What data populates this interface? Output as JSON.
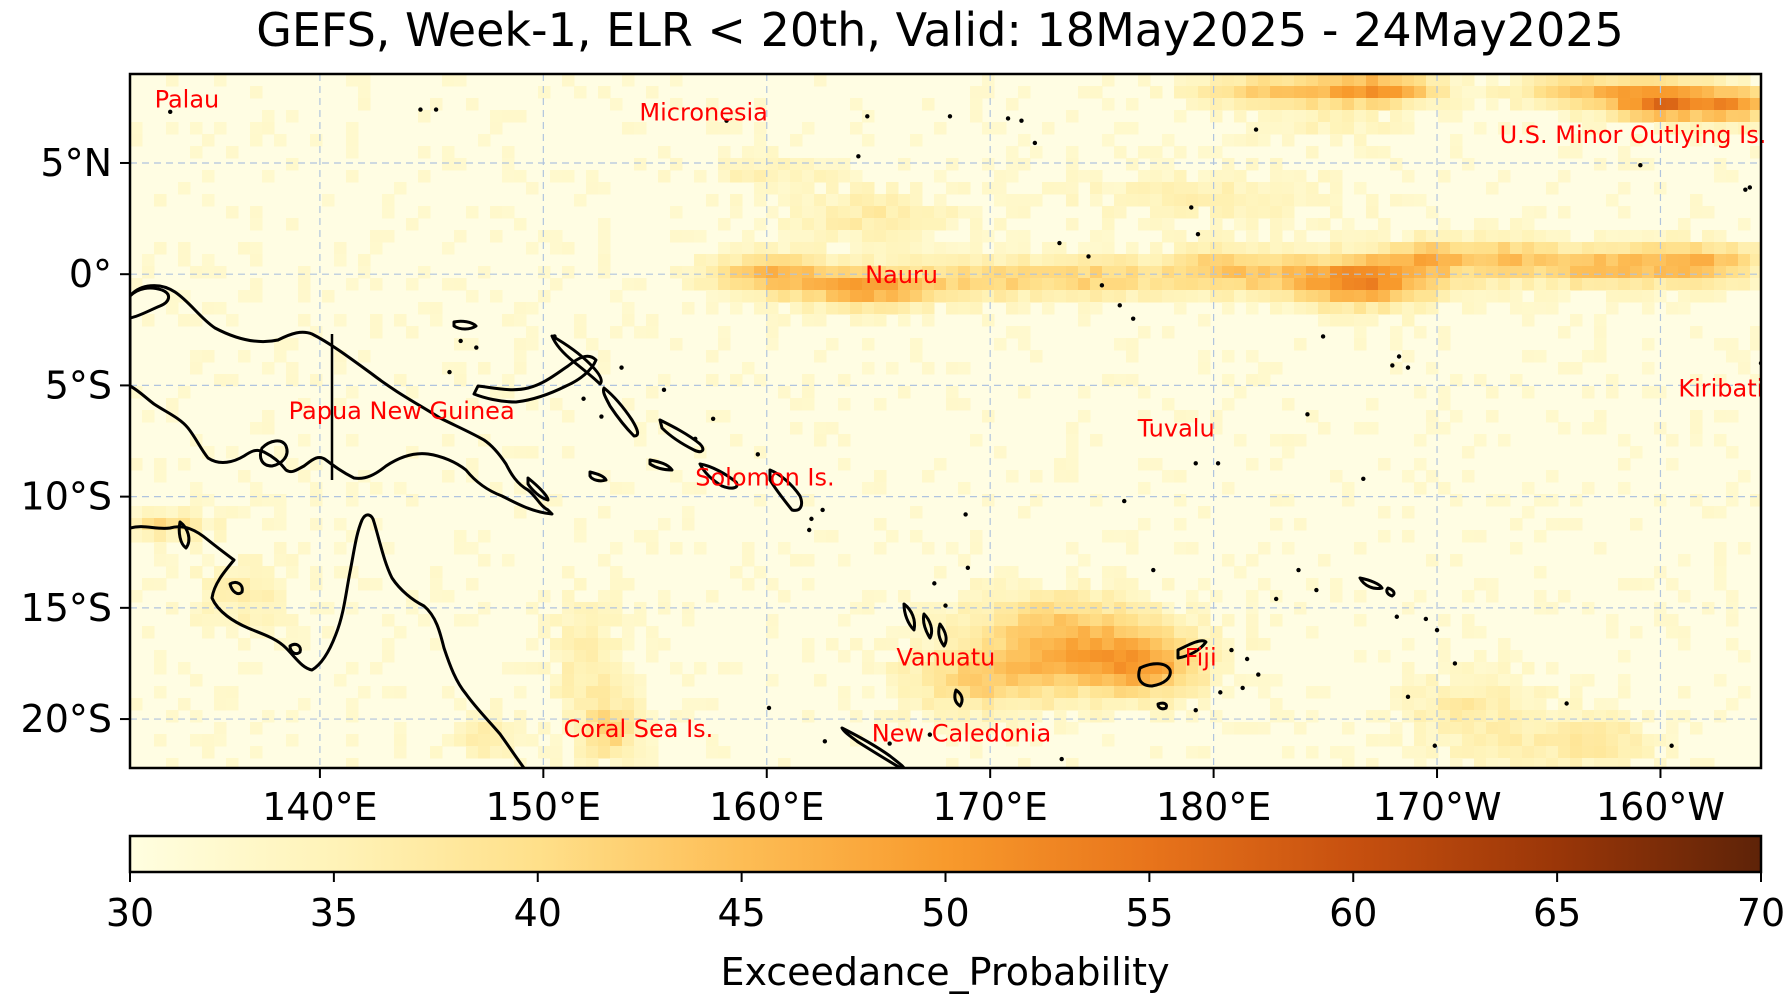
{
  "title": "GEFS, Week-1, ELR < 20th, Valid: 18May2025 - 24May2025",
  "map": {
    "lon_min": 131.5,
    "lon_max": 204.5,
    "lat_min": -22.2,
    "lat_max": 9.0,
    "lon_ticks": [
      {
        "value": 140,
        "label": "140°E"
      },
      {
        "value": 150,
        "label": "150°E"
      },
      {
        "value": 160,
        "label": "160°E"
      },
      {
        "value": 170,
        "label": "170°E"
      },
      {
        "value": 180,
        "label": "180°E"
      },
      {
        "value": 190,
        "label": "170°W"
      },
      {
        "value": 200,
        "label": "160°W"
      }
    ],
    "lat_ticks": [
      {
        "value": 5,
        "label": "5°N"
      },
      {
        "value": 0,
        "label": "0°"
      },
      {
        "value": -5,
        "label": "5°S"
      },
      {
        "value": -10,
        "label": "10°S"
      },
      {
        "value": -15,
        "label": "15°S"
      },
      {
        "value": -20,
        "label": "20°S"
      }
    ],
    "grid": true,
    "labels": [
      {
        "name": "Palau",
        "lon": 132.6,
        "lat": 7.5
      },
      {
        "name": "Micronesia",
        "lon": 154.3,
        "lat": 6.9
      },
      {
        "name": "U.S. Minor Outlying Is.",
        "lon": 192.8,
        "lat": 5.9
      },
      {
        "name": "Nauru",
        "lon": 164.4,
        "lat": -0.4
      },
      {
        "name": "Kiribati",
        "lon": 200.8,
        "lat": -5.5
      },
      {
        "name": "Papua New Guinea",
        "lon": 138.6,
        "lat": -6.5
      },
      {
        "name": "Tuvalu",
        "lon": 176.6,
        "lat": -7.3
      },
      {
        "name": "Solomon Is.",
        "lon": 156.8,
        "lat": -9.5
      },
      {
        "name": "Vanuatu",
        "lon": 165.8,
        "lat": -17.6
      },
      {
        "name": "Fiji",
        "lon": 178.7,
        "lat": -17.6
      },
      {
        "name": "Coral Sea Is.",
        "lon": 150.9,
        "lat": -20.8
      },
      {
        "name": "New Caledonia",
        "lon": 164.7,
        "lat": -21.0
      }
    ],
    "probability_field": {
      "variable": "Exceedance_Probability",
      "base_value": 31,
      "anomalies": [
        {
          "lon": 160.0,
          "lat": 0.0,
          "rlon": 2.5,
          "rlat": 0.9,
          "value": 14
        },
        {
          "lon": 164.5,
          "lat": -0.6,
          "rlon": 3.0,
          "rlat": 0.9,
          "value": 18
        },
        {
          "lon": 170.0,
          "lat": -0.2,
          "rlon": 3.0,
          "rlat": 0.9,
          "value": 10
        },
        {
          "lon": 175.0,
          "lat": -0.2,
          "rlon": 3.0,
          "rlat": 0.9,
          "value": 10
        },
        {
          "lon": 180.5,
          "lat": 0.2,
          "rlon": 3.0,
          "rlat": 1.0,
          "value": 12
        },
        {
          "lon": 186.5,
          "lat": -0.3,
          "rlon": 3.5,
          "rlat": 1.1,
          "value": 22
        },
        {
          "lon": 189.5,
          "lat": 0.8,
          "rlon": 2.0,
          "rlat": 0.8,
          "value": 10
        },
        {
          "lon": 193.0,
          "lat": 0.7,
          "rlon": 2.5,
          "rlat": 0.9,
          "value": 12
        },
        {
          "lon": 197.0,
          "lat": 0.3,
          "rlon": 2.5,
          "rlat": 0.9,
          "value": 12
        },
        {
          "lon": 201.5,
          "lat": 0.5,
          "rlon": 3.0,
          "rlat": 0.9,
          "value": 16
        },
        {
          "lon": 165.0,
          "lat": 2.6,
          "rlon": 3.5,
          "rlat": 1.2,
          "value": 6
        },
        {
          "lon": 180.0,
          "lat": 3.5,
          "rlon": 6.0,
          "rlat": 1.2,
          "value": 4
        },
        {
          "lon": 160.0,
          "lat": 4.5,
          "rlon": 3.0,
          "rlat": 0.8,
          "value": 4
        },
        {
          "lon": 183.0,
          "lat": 8.2,
          "rlon": 3.5,
          "rlat": 0.8,
          "value": 12
        },
        {
          "lon": 187.5,
          "lat": 8.3,
          "rlon": 2.5,
          "rlat": 0.7,
          "value": 18
        },
        {
          "lon": 197.0,
          "lat": 8.2,
          "rlon": 3.5,
          "rlat": 0.8,
          "value": 12
        },
        {
          "lon": 200.5,
          "lat": 7.7,
          "rlon": 2.5,
          "rlat": 0.8,
          "value": 22
        },
        {
          "lon": 203.5,
          "lat": 7.6,
          "rlon": 1.5,
          "rlat": 0.8,
          "value": 14
        },
        {
          "lon": 185.0,
          "lat": 6.5,
          "rlon": 4.0,
          "rlat": 0.8,
          "value": 3
        },
        {
          "lon": 174.0,
          "lat": -16.8,
          "rlon": 4.5,
          "rlat": 1.8,
          "value": 15
        },
        {
          "lon": 177.0,
          "lat": -17.8,
          "rlon": 2.5,
          "rlat": 1.2,
          "value": 12
        },
        {
          "lon": 169.5,
          "lat": -18.3,
          "rlon": 3.5,
          "rlat": 1.5,
          "value": 9
        },
        {
          "lon": 172.0,
          "lat": -15.0,
          "rlon": 4.0,
          "rlat": 1.0,
          "value": 4
        },
        {
          "lon": 152.0,
          "lat": -17.5,
          "rlon": 1.6,
          "rlat": 2.5,
          "value": 6
        },
        {
          "lon": 153.0,
          "lat": -20.5,
          "rlon": 1.3,
          "rlat": 1.3,
          "value": 10
        },
        {
          "lon": 133.0,
          "lat": -11.3,
          "rlon": 2.0,
          "rlat": 0.6,
          "value": 9
        },
        {
          "lon": 136.5,
          "lat": -14.5,
          "rlon": 2.0,
          "rlat": 1.5,
          "value": 5
        },
        {
          "lon": 147.5,
          "lat": -20.8,
          "rlon": 1.5,
          "rlat": 1.0,
          "value": 5
        },
        {
          "lon": 191.5,
          "lat": -19.5,
          "rlon": 3.0,
          "rlat": 1.5,
          "value": 6
        },
        {
          "lon": 197.0,
          "lat": -21.0,
          "rlon": 2.5,
          "rlat": 1.2,
          "value": 7
        },
        {
          "lon": 193.0,
          "lat": -21.5,
          "rlon": 2.0,
          "rlat": 0.8,
          "value": 4
        }
      ]
    }
  },
  "colorbar": {
    "label": "Exceedance_Probability",
    "min": 30,
    "max": 70,
    "ticks": [
      "30",
      "35",
      "40",
      "45",
      "50",
      "55",
      "60",
      "65",
      "70"
    ],
    "colors": [
      "#fffee0",
      "#fff3b8",
      "#ffe08a",
      "#fdbd55",
      "#f89a2c",
      "#e8741b",
      "#c7500f",
      "#9a3608",
      "#5e2308"
    ]
  }
}
